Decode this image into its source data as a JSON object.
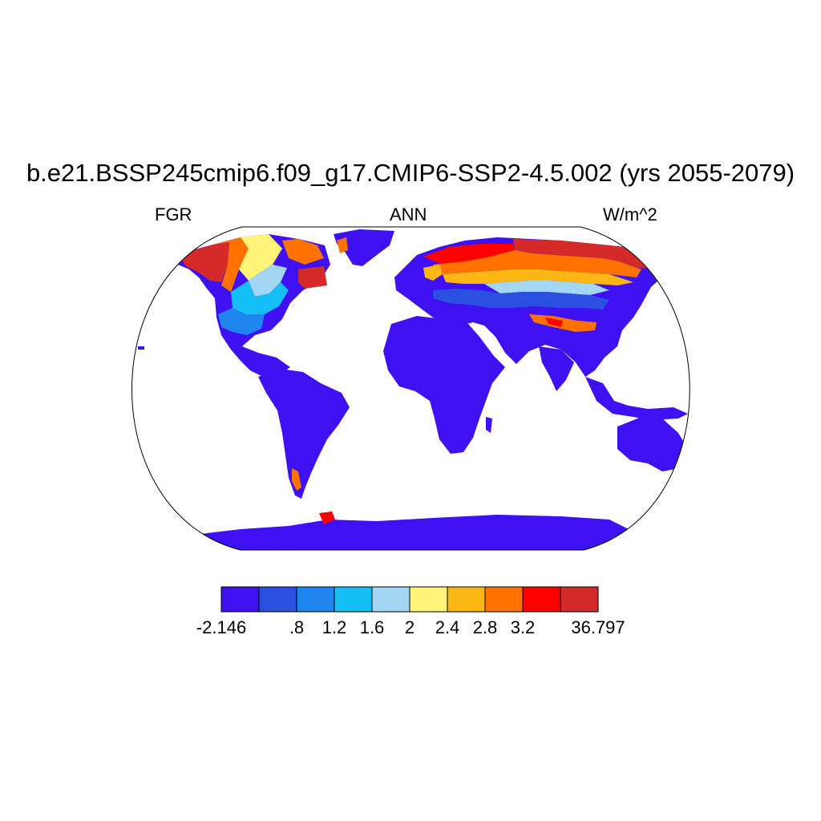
{
  "title": "b.e21.BSSP245cmip6.f09_g17.CMIP6-SSP2-4.5.002 (yrs 2055-2079)",
  "subtitle_left": "FGR",
  "subtitle_center": "ANN",
  "subtitle_right": "W/m^2",
  "colorbar": {
    "colors": [
      "#3e10f2",
      "#2b4fdf",
      "#1f86f0",
      "#14bff5",
      "#a3d6f3",
      "#fff37a",
      "#fdb714",
      "#ff7200",
      "#ff0000",
      "#d42a2a"
    ],
    "labels": [
      "-2.146",
      ".8",
      "1.2",
      "1.6",
      "2",
      "2.4",
      "2.8",
      "3.2",
      "36.797"
    ]
  },
  "map": {
    "projection": "Robinson",
    "land_color": "#3e10f2",
    "ocean_color": "#ffffff"
  }
}
